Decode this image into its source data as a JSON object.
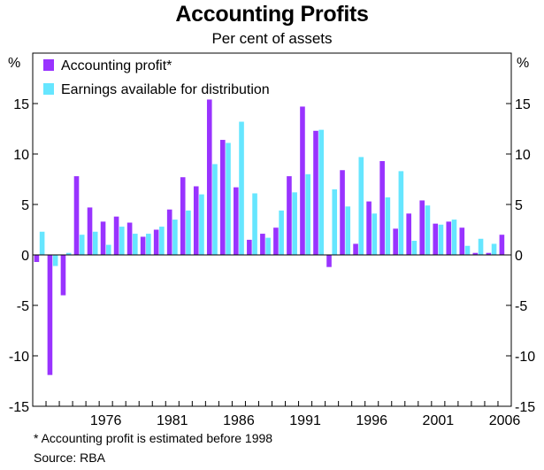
{
  "chart_data": {
    "type": "bar",
    "title": "Accounting Profits",
    "subtitle": "Per cent of assets",
    "ylabel_left": "%",
    "ylabel_right": "%",
    "ylim": [
      -15,
      20
    ],
    "yticks": [
      15,
      10,
      5,
      0,
      -5,
      -10,
      -15
    ],
    "ytick_labels": [
      "15",
      "10",
      "5",
      "0",
      "-5",
      "-10",
      "-15"
    ],
    "x_start_year": 1971,
    "x_end_year": 2006,
    "xtick_years": [
      1976,
      1981,
      1986,
      1991,
      1996,
      2001,
      2006
    ],
    "xtick_labels": [
      "1976",
      "1981",
      "1986",
      "1991",
      "1996",
      "2001",
      "2006"
    ],
    "series": [
      {
        "name": "Accounting profit*",
        "color": "#9933ff",
        "values": [
          -0.7,
          -11.9,
          -4.0,
          7.8,
          4.7,
          3.3,
          3.8,
          3.2,
          1.8,
          2.5,
          4.5,
          7.7,
          6.8,
          15.4,
          11.4,
          6.7,
          1.5,
          2.1,
          2.7,
          7.8,
          14.7,
          12.3,
          -1.2,
          8.4,
          1.1,
          5.3,
          9.3,
          2.6,
          4.1,
          5.4,
          3.1,
          3.3,
          2.7,
          0.2,
          0.2,
          2.0
        ]
      },
      {
        "name": "Earnings available for distribution",
        "color": "#66e6ff",
        "values": [
          2.3,
          -1.1,
          0.2,
          2.0,
          2.3,
          1.0,
          2.8,
          2.1,
          2.1,
          2.8,
          3.5,
          4.4,
          6.0,
          9.0,
          11.1,
          13.2,
          6.1,
          1.7,
          4.4,
          6.2,
          8.0,
          12.4,
          6.5,
          4.8,
          9.7,
          4.1,
          5.7,
          8.3,
          1.4,
          4.9,
          3.0,
          3.5,
          0.9,
          1.6,
          1.1,
          0.0
        ]
      }
    ],
    "legend": "top-left",
    "annotations": [
      "* Accounting profit is estimated before 1998",
      "Source: RBA"
    ]
  }
}
